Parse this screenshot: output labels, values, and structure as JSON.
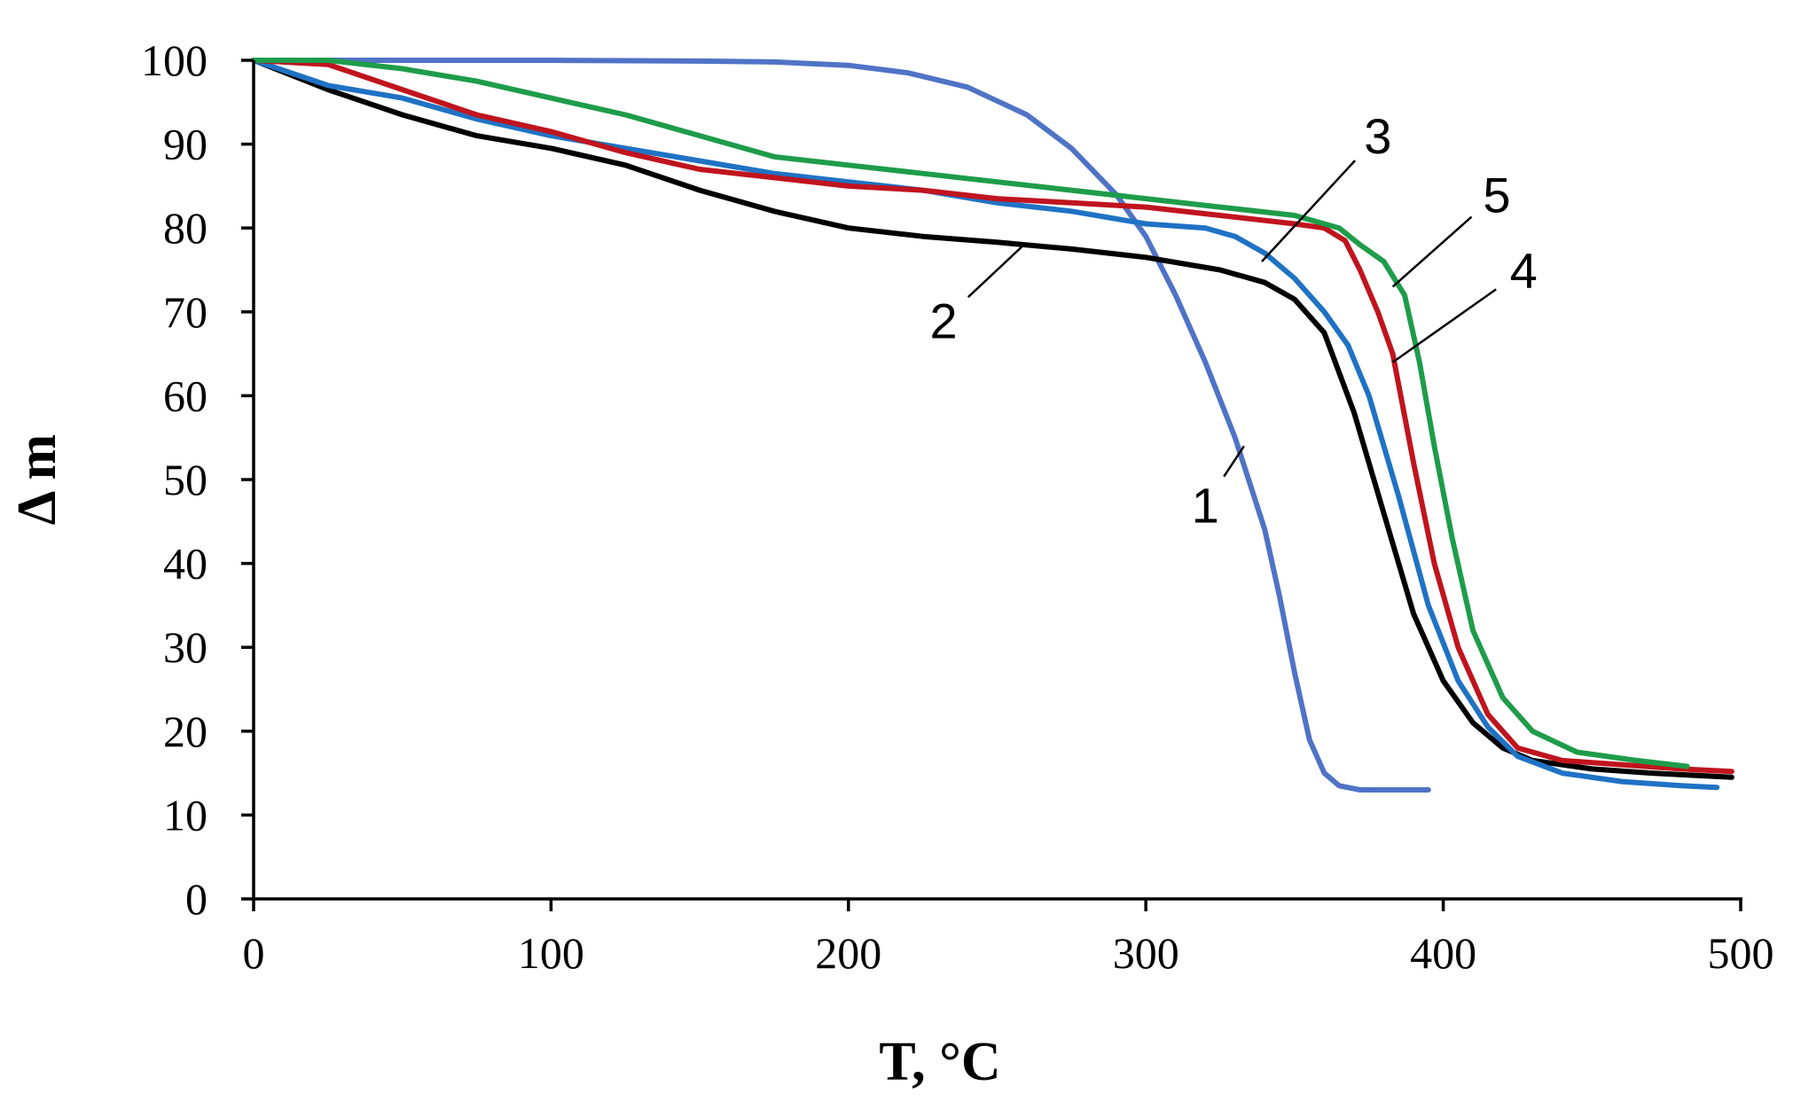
{
  "chart_data": {
    "type": "line",
    "title": "",
    "xlabel": "T, °C",
    "ylabel": "Δ m",
    "xlim": [
      0,
      500
    ],
    "ylim": [
      0,
      100
    ],
    "x_ticks": [
      0,
      100,
      200,
      300,
      400,
      500
    ],
    "y_ticks": [
      0,
      10,
      20,
      30,
      40,
      50,
      60,
      70,
      80,
      90,
      100
    ],
    "x_tick_labels": [
      "0",
      "100",
      "200",
      "300",
      "400",
      "500"
    ],
    "y_tick_labels": [
      "0",
      "10",
      "20",
      "30",
      "40",
      "50",
      "60",
      "70",
      "80",
      "90",
      "100"
    ],
    "grid": false,
    "legend": "none",
    "series": [
      {
        "name": "1",
        "color": "#4f73c6",
        "label_at": [
          320,
          47
        ],
        "leader_to": [
          333,
          54
        ],
        "points": [
          [
            0,
            100
          ],
          [
            50,
            100
          ],
          [
            100,
            100
          ],
          [
            150,
            99.9
          ],
          [
            175,
            99.8
          ],
          [
            200,
            99.4
          ],
          [
            220,
            98.5
          ],
          [
            240,
            96.8
          ],
          [
            260,
            93.5
          ],
          [
            275,
            89.5
          ],
          [
            290,
            84
          ],
          [
            300,
            79
          ],
          [
            310,
            72
          ],
          [
            320,
            64
          ],
          [
            330,
            55
          ],
          [
            340,
            44
          ],
          [
            345,
            36
          ],
          [
            350,
            27
          ],
          [
            355,
            19
          ],
          [
            360,
            15
          ],
          [
            365,
            13.5
          ],
          [
            372,
            13
          ],
          [
            380,
            13
          ],
          [
            395,
            13
          ]
        ]
      },
      {
        "name": "2",
        "color": "#000000",
        "label_at": [
          232,
          69
        ],
        "leader_to": [
          259,
          78
        ],
        "points": [
          [
            0,
            100
          ],
          [
            25,
            96.5
          ],
          [
            50,
            93.5
          ],
          [
            75,
            91
          ],
          [
            100,
            89.5
          ],
          [
            125,
            87.5
          ],
          [
            150,
            84.5
          ],
          [
            175,
            82
          ],
          [
            200,
            80
          ],
          [
            225,
            79
          ],
          [
            250,
            78.3
          ],
          [
            275,
            77.5
          ],
          [
            300,
            76.5
          ],
          [
            325,
            75
          ],
          [
            340,
            73.5
          ],
          [
            350,
            71.5
          ],
          [
            360,
            67.5
          ],
          [
            370,
            58
          ],
          [
            380,
            46
          ],
          [
            390,
            34
          ],
          [
            400,
            26
          ],
          [
            410,
            21
          ],
          [
            420,
            18
          ],
          [
            430,
            16.5
          ],
          [
            450,
            15.5
          ],
          [
            470,
            15
          ],
          [
            497,
            14.5
          ]
        ]
      },
      {
        "name": "3",
        "color": "#1f72c4",
        "label_at": [
          378,
          91
        ],
        "leader_to": [
          339,
          76
        ],
        "points": [
          [
            0,
            100
          ],
          [
            25,
            97
          ],
          [
            50,
            95.5
          ],
          [
            75,
            93
          ],
          [
            100,
            91
          ],
          [
            125,
            89.5
          ],
          [
            150,
            88
          ],
          [
            175,
            86.5
          ],
          [
            200,
            85.5
          ],
          [
            225,
            84.5
          ],
          [
            250,
            83
          ],
          [
            275,
            82
          ],
          [
            300,
            80.5
          ],
          [
            320,
            80
          ],
          [
            330,
            79
          ],
          [
            340,
            77
          ],
          [
            350,
            74
          ],
          [
            360,
            70
          ],
          [
            368,
            66
          ],
          [
            375,
            60
          ],
          [
            385,
            48
          ],
          [
            395,
            35
          ],
          [
            405,
            26
          ],
          [
            415,
            20.5
          ],
          [
            425,
            17
          ],
          [
            440,
            15
          ],
          [
            460,
            14
          ],
          [
            480,
            13.5
          ],
          [
            492,
            13.3
          ]
        ]
      },
      {
        "name": "4",
        "color": "#c0141e",
        "label_at": [
          427,
          75
        ],
        "leader_to": [
          383,
          64
        ],
        "points": [
          [
            0,
            100
          ],
          [
            25,
            99.5
          ],
          [
            50,
            96.5
          ],
          [
            75,
            93.5
          ],
          [
            100,
            91.5
          ],
          [
            125,
            89
          ],
          [
            150,
            87
          ],
          [
            175,
            86
          ],
          [
            200,
            85
          ],
          [
            225,
            84.5
          ],
          [
            250,
            83.5
          ],
          [
            275,
            83
          ],
          [
            300,
            82.5
          ],
          [
            325,
            81.5
          ],
          [
            350,
            80.5
          ],
          [
            360,
            80
          ],
          [
            367,
            78.5
          ],
          [
            372,
            75
          ],
          [
            378,
            70
          ],
          [
            383,
            65
          ],
          [
            390,
            52
          ],
          [
            397,
            40
          ],
          [
            405,
            30
          ],
          [
            415,
            22
          ],
          [
            425,
            18
          ],
          [
            440,
            16.5
          ],
          [
            460,
            16
          ],
          [
            480,
            15.5
          ],
          [
            497,
            15.2
          ]
        ]
      },
      {
        "name": "5",
        "color": "#1e9c4a",
        "label_at": [
          418,
          84
        ],
        "leader_to": [
          383,
          73
        ],
        "points": [
          [
            0,
            100
          ],
          [
            25,
            100
          ],
          [
            50,
            99
          ],
          [
            75,
            97.5
          ],
          [
            100,
            95.5
          ],
          [
            125,
            93.5
          ],
          [
            150,
            91
          ],
          [
            175,
            88.5
          ],
          [
            200,
            87.5
          ],
          [
            225,
            86.5
          ],
          [
            250,
            85.5
          ],
          [
            275,
            84.5
          ],
          [
            300,
            83.5
          ],
          [
            325,
            82.5
          ],
          [
            350,
            81.5
          ],
          [
            365,
            80
          ],
          [
            372,
            78
          ],
          [
            380,
            76
          ],
          [
            387,
            72
          ],
          [
            392,
            64
          ],
          [
            397,
            54
          ],
          [
            403,
            43
          ],
          [
            410,
            32
          ],
          [
            420,
            24
          ],
          [
            430,
            20
          ],
          [
            445,
            17.5
          ],
          [
            465,
            16.5
          ],
          [
            482,
            15.8
          ]
        ]
      }
    ]
  }
}
